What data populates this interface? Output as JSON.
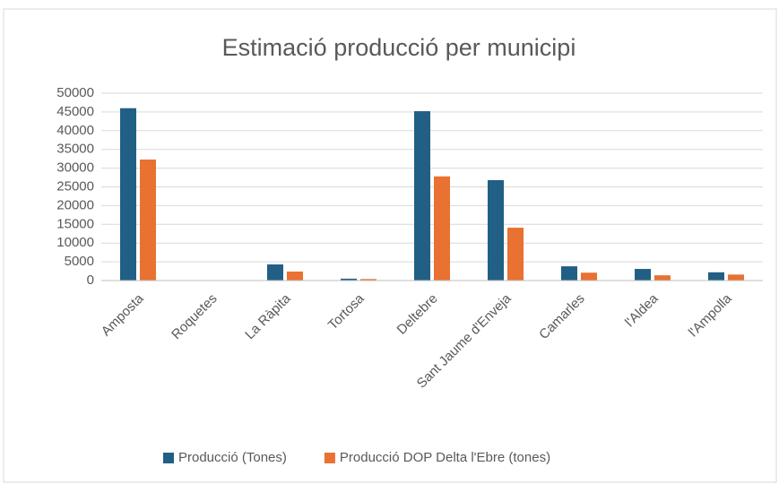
{
  "chart_data": {
    "type": "bar",
    "title": "Estimació producció per municipi",
    "categories": [
      "Amposta",
      "Roquetes",
      "La Ràpita",
      "Tortosa",
      "Deltebre",
      "Sant Jaume d'Enveja",
      "Camarles",
      "l'Aldea",
      "l'Ampolla"
    ],
    "series": [
      {
        "name": "Producció (Tones)",
        "color": "#215f85",
        "values": [
          46000,
          0,
          4300,
          500,
          45200,
          26800,
          3800,
          3100,
          2200
        ]
      },
      {
        "name": "Producció DOP Delta l'Ebre (tones)",
        "color": "#e97132",
        "values": [
          32300,
          0,
          2400,
          400,
          27800,
          14100,
          2100,
          1400,
          1600
        ]
      }
    ],
    "ylim": [
      0,
      50000
    ],
    "yticks": [
      0,
      5000,
      10000,
      15000,
      20000,
      25000,
      30000,
      35000,
      40000,
      45000,
      50000
    ],
    "grid": true,
    "legend": "bottom"
  }
}
